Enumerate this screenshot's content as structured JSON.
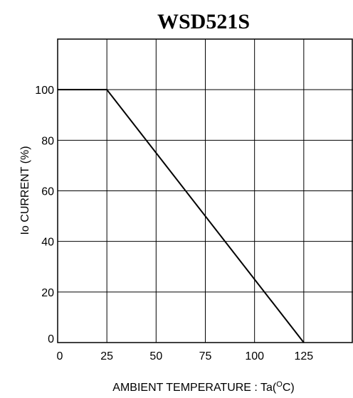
{
  "chart_data": {
    "type": "line",
    "title": "WSD521S",
    "xlabel": {
      "before": "AMBIENT TEMPERATURE : Ta(",
      "sup": "O",
      "after": "C)"
    },
    "ylabel": "Io CURRENT (%)",
    "xlim": [
      0,
      150
    ],
    "ylim": [
      0,
      120
    ],
    "x_ticks": [
      0,
      25,
      50,
      75,
      100,
      125,
      150
    ],
    "x_tick_labels": [
      "0",
      "25",
      "50",
      "75",
      "100",
      "125",
      ""
    ],
    "y_ticks": [
      0,
      20,
      40,
      60,
      80,
      100,
      120
    ],
    "y_tick_labels": [
      "0",
      "20",
      "40",
      "60",
      "80",
      "100",
      ""
    ],
    "grid": true,
    "series": [
      {
        "x": [
          0,
          25,
          125
        ],
        "y": [
          100,
          100,
          0
        ]
      }
    ],
    "colors": {
      "line": "#000000",
      "grid": "#000000",
      "background": "#ffffff"
    }
  }
}
